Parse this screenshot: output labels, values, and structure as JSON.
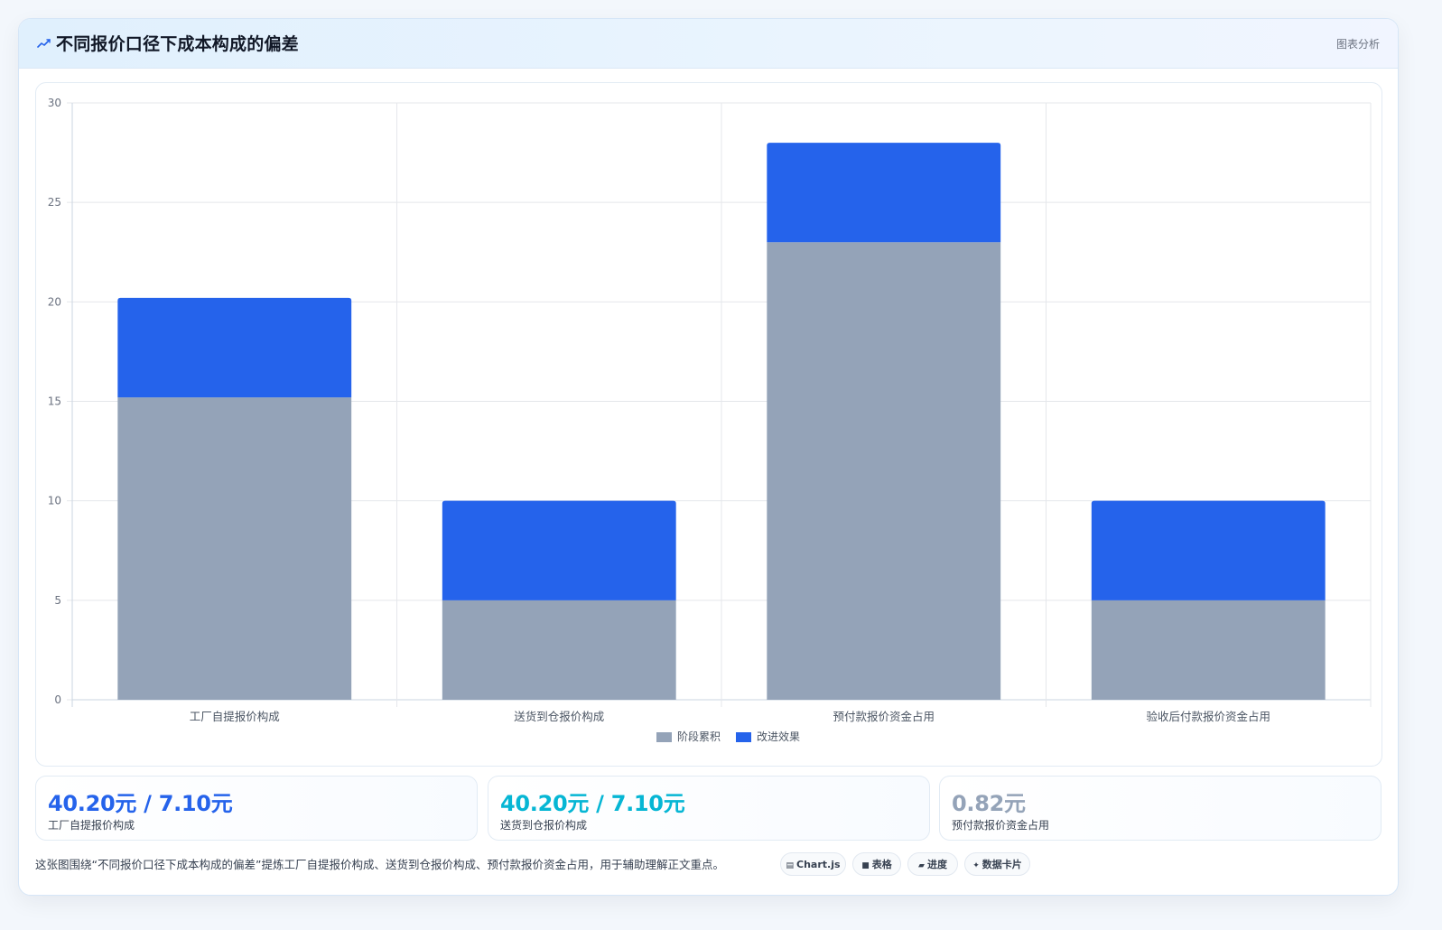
{
  "header": {
    "icon": "trend-icon",
    "title": "不同报价口径下成本构成的偏差",
    "tag": "图表分析"
  },
  "chart_data": {
    "type": "bar",
    "stacked": true,
    "categories": [
      "工厂自提报价构成",
      "送货到仓报价构成",
      "预付款报价资金占用",
      "验收后付款报价资金占用"
    ],
    "series": [
      {
        "name": "阶段累积",
        "color": "#94a3b8",
        "values": [
          15.2,
          5,
          23,
          5
        ]
      },
      {
        "name": "改进效果",
        "color": "#2563eb",
        "values": [
          5,
          5,
          5,
          5
        ]
      }
    ],
    "yticks": [
      "0",
      "5",
      "10",
      "15",
      "20",
      "25",
      "30"
    ],
    "ylim": [
      0,
      30
    ],
    "grid": true,
    "legend": "bottom"
  },
  "stats": [
    {
      "value": "40.20元 / 7.10元",
      "label": "工厂自提报价构成",
      "color": "#2563eb"
    },
    {
      "value": "40.20元 / 7.10元",
      "label": "送货到仓报价构成",
      "color": "#06b6d4"
    },
    {
      "value": "0.82元",
      "label": "预付款报价资金占用",
      "color": "#94a3b8"
    }
  ],
  "footer": {
    "text": "这张图围绕“不同报价口径下成本构成的偏差”提炼工厂自提报价构成、送货到仓报价构成、预付款报价资金占用，用于辅助理解正文重点。"
  },
  "chips": [
    {
      "icon": "chart-icon",
      "glyph": "▤",
      "label": "Chart.js"
    },
    {
      "icon": "table-icon",
      "glyph": "■",
      "label": "表格"
    },
    {
      "icon": "progress-icon",
      "glyph": "▰",
      "label": "进度"
    },
    {
      "icon": "sparkle-icon",
      "glyph": "✦",
      "label": "数据卡片"
    }
  ]
}
